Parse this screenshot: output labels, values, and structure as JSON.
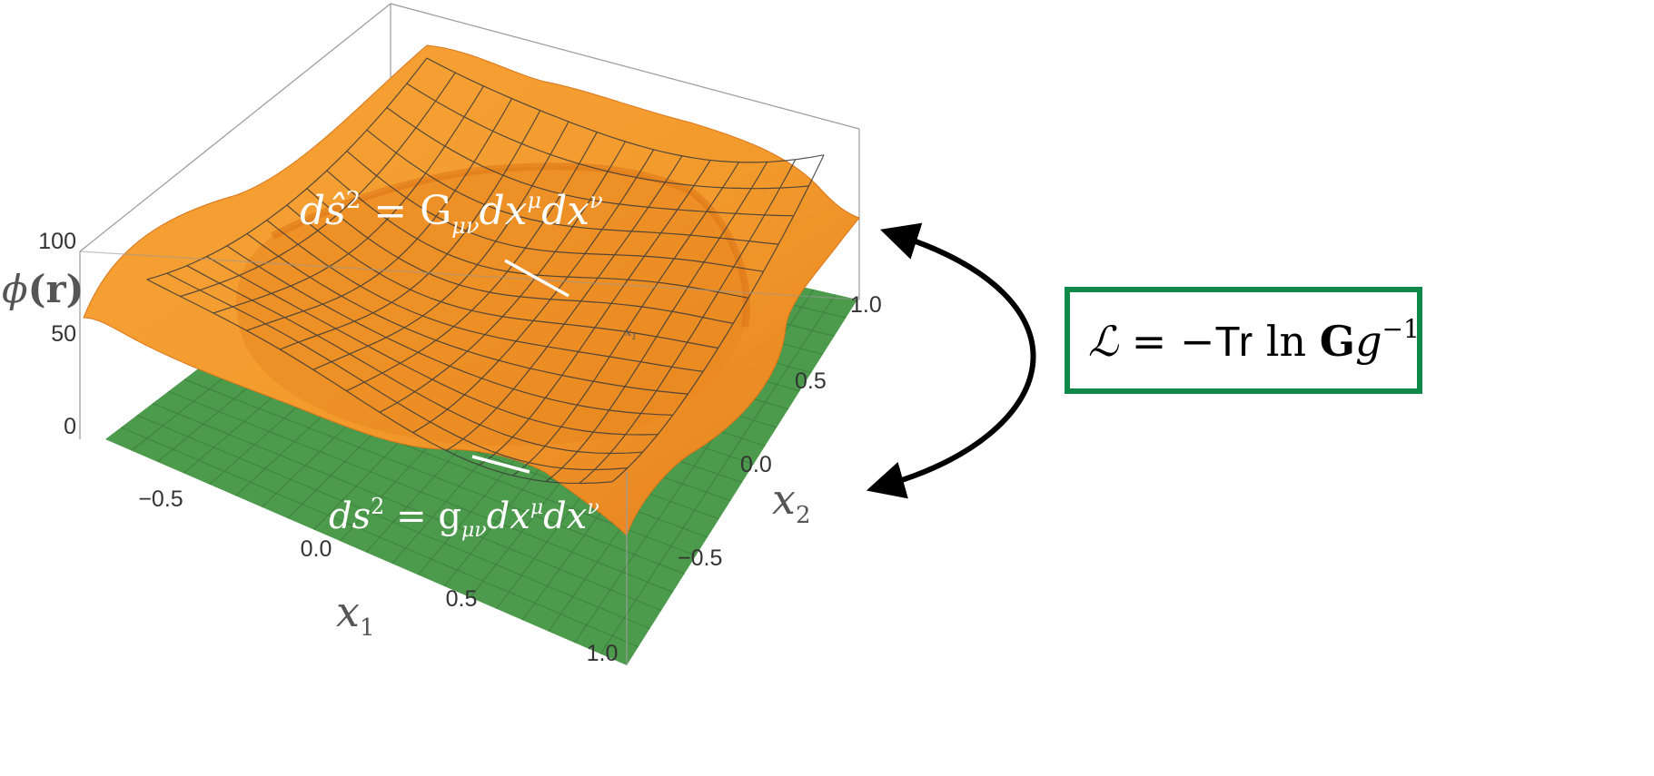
{
  "figure": {
    "z_axis": {
      "label_main": "ϕ",
      "label_arg": "(r)",
      "ticks": [
        "0",
        "50",
        "100"
      ]
    },
    "x1_axis": {
      "label": "x",
      "label_sub": "1",
      "ticks": [
        "−0.5",
        "0.0",
        "0.5",
        "1.0"
      ]
    },
    "x2_axis": {
      "label": "x",
      "label_sub": "2",
      "ticks": [
        "−0.5",
        "0.0",
        "0.5",
        "1.0"
      ]
    },
    "inner_label": {
      "text": "x",
      "sub": "1"
    },
    "upper_metric": {
      "lhs": "dŝ",
      "exp": "2",
      "eq": " = G",
      "sub": "μν",
      "mid": "dx",
      "sup1": "μ",
      "tail": "dx",
      "sup2": "ν"
    },
    "lower_metric": {
      "lhs": "ds",
      "exp": "2",
      "eq": " = g",
      "sub": "μν",
      "mid": "dx",
      "sup1": "μ",
      "tail": "dx",
      "sup2": "ν"
    },
    "lagrangian": {
      "symbol": "ℒ",
      "eq": " = −",
      "tr": "Tr",
      "ln": " ln ",
      "G": "G",
      "g": "g",
      "exp": "−1"
    },
    "colors": {
      "surface": "#f39a2c",
      "surface_dark": "#e0791a",
      "plane": "#4c9a4c",
      "mesh": "#3a3a3a",
      "box": "#9a9a9a",
      "box_border_lagrangian": "#0d8a4a",
      "arrow": "#000000"
    }
  }
}
